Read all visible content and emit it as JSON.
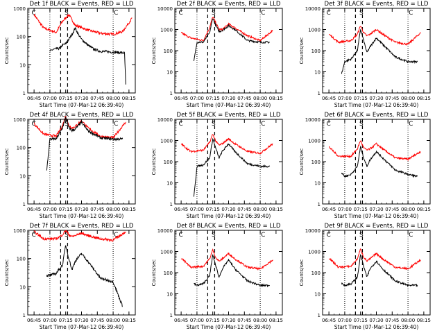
{
  "colors": {
    "events": "#000000",
    "lld": "#ff0000",
    "axes": "#000000"
  },
  "chart_data": [
    {
      "type": "line",
      "title": "Det 1f BLACK = Events, RED = LLD",
      "xlabel": "Start Time (07-Mar-12 06:39:40)",
      "ylabel": "Counts/sec",
      "xticks": [
        "06:45",
        "07:00",
        "07:15",
        "07:30",
        "07:45",
        "08:00",
        "08:15"
      ],
      "yticks": [
        "1",
        "10",
        "100",
        "1000"
      ],
      "ylim": [
        1,
        1000
      ],
      "markers": [
        "C",
        "S",
        "C"
      ],
      "series": [
        {
          "name": "LLD",
          "color": "#ff0000",
          "x": [
            6.75,
            6.9,
            7.1,
            7.2,
            7.3,
            7.4,
            7.6,
            7.8,
            8.0,
            8.15,
            8.3
          ],
          "y": [
            600,
            200,
            140,
            350,
            600,
            250,
            170,
            130,
            120,
            150,
            450
          ]
        },
        {
          "name": "Events",
          "color": "#000000",
          "x": [
            7.0,
            7.05,
            7.15,
            7.2,
            7.25,
            7.3,
            7.35,
            7.4,
            7.45,
            7.5,
            7.6,
            7.7,
            7.8,
            8.0,
            8.12,
            8.18,
            8.2
          ],
          "y": [
            30,
            35,
            38,
            50,
            55,
            80,
            120,
            200,
            120,
            80,
            50,
            35,
            30,
            28,
            27,
            26,
            2
          ]
        }
      ]
    },
    {
      "type": "line",
      "title": "Det 2f BLACK = Events, RED = LLD",
      "xlabel": "Start Time (07-Mar-12 06:39:40)",
      "ylabel": "Counts/sec",
      "xticks": [
        "06:45",
        "07:00",
        "07:15",
        "07:30",
        "07:45",
        "08:00",
        "08:15"
      ],
      "yticks": [
        "1",
        "10",
        "100",
        "1000",
        "10000"
      ],
      "ylim": [
        1,
        10000
      ],
      "markers": [
        "C",
        "S",
        "C"
      ],
      "series": [
        {
          "name": "LLD",
          "color": "#ff0000",
          "x": [
            6.75,
            6.9,
            7.1,
            7.2,
            7.25,
            7.3,
            7.35,
            7.4,
            7.5,
            7.6,
            7.8,
            8.0,
            8.2
          ],
          "y": [
            700,
            400,
            300,
            1200,
            4000,
            2000,
            1000,
            1000,
            1800,
            1200,
            500,
            300,
            900
          ]
        },
        {
          "name": "Events",
          "color": "#000000",
          "x": [
            6.95,
            7.0,
            7.1,
            7.2,
            7.25,
            7.3,
            7.35,
            7.4,
            7.5,
            7.6,
            7.8,
            8.0,
            8.15
          ],
          "y": [
            30,
            250,
            250,
            700,
            3500,
            1500,
            800,
            900,
            1500,
            1000,
            300,
            250,
            250
          ]
        }
      ]
    },
    {
      "type": "line",
      "title": "Det 3f BLACK = Events, RED = LLD",
      "xlabel": "Start Time (07-Mar-12 06:39:40)",
      "ylabel": "Counts/sec",
      "xticks": [
        "06:45",
        "07:00",
        "07:15",
        "07:30",
        "07:45",
        "08:00",
        "08:15"
      ],
      "yticks": [
        "1",
        "10",
        "100",
        "1000",
        "10000"
      ],
      "ylim": [
        1,
        10000
      ],
      "markers": [
        "C",
        "S",
        "C"
      ],
      "series": [
        {
          "name": "LLD",
          "color": "#ff0000",
          "x": [
            6.75,
            6.9,
            7.1,
            7.2,
            7.25,
            7.3,
            7.35,
            7.4,
            7.5,
            7.6,
            7.8,
            8.0,
            8.2
          ],
          "y": [
            600,
            250,
            300,
            600,
            1500,
            700,
            500,
            600,
            1000,
            600,
            250,
            200,
            700
          ]
        },
        {
          "name": "Events",
          "color": "#000000",
          "x": [
            6.95,
            7.0,
            7.1,
            7.2,
            7.25,
            7.3,
            7.35,
            7.4,
            7.5,
            7.6,
            7.8,
            8.0,
            8.15
          ],
          "y": [
            8,
            30,
            40,
            100,
            1000,
            300,
            80,
            150,
            400,
            200,
            50,
            30,
            30
          ]
        }
      ]
    },
    {
      "type": "line",
      "title": "Det 4f BLACK = Events, RED = LLD",
      "xlabel": "Start Time (07-Mar-12 06:39:40)",
      "ylabel": "Counts/sec",
      "xticks": [
        "06:45",
        "07:00",
        "07:15",
        "07:30",
        "07:45",
        "08:00",
        "08:15"
      ],
      "yticks": [
        "1",
        "10",
        "100",
        "1000"
      ],
      "ylim": [
        1,
        1000
      ],
      "markers": [
        "C",
        "S",
        "C"
      ],
      "series": [
        {
          "name": "LLD",
          "color": "#ff0000",
          "x": [
            6.75,
            6.9,
            7.1,
            7.2,
            7.25,
            7.3,
            7.35,
            7.4,
            7.5,
            7.6,
            7.8,
            8.0,
            8.2
          ],
          "y": [
            700,
            300,
            250,
            600,
            1300,
            600,
            500,
            550,
            900,
            500,
            250,
            220,
            800
          ]
        },
        {
          "name": "Events",
          "color": "#000000",
          "x": [
            6.95,
            7.0,
            7.1,
            7.2,
            7.25,
            7.3,
            7.35,
            7.4,
            7.5,
            7.6,
            7.8,
            8.0,
            8.15
          ],
          "y": [
            15,
            200,
            200,
            500,
            1200,
            500,
            400,
            450,
            800,
            400,
            220,
            200,
            200
          ]
        }
      ]
    },
    {
      "type": "line",
      "title": "Det 5f BLACK = Events, RED = LLD",
      "xlabel": "Start Time (07-Mar-12 06:39:40)",
      "ylabel": "Counts/sec",
      "xticks": [
        "06:45",
        "07:00",
        "07:15",
        "07:30",
        "07:45",
        "08:00",
        "08:15"
      ],
      "yticks": [
        "1",
        "10",
        "100",
        "1000",
        "10000"
      ],
      "ylim": [
        1,
        10000
      ],
      "markers": [
        "C",
        "S",
        "C"
      ],
      "series": [
        {
          "name": "LLD",
          "color": "#ff0000",
          "x": [
            6.75,
            6.9,
            7.1,
            7.2,
            7.25,
            7.3,
            7.35,
            7.4,
            7.5,
            7.6,
            7.8,
            8.0,
            8.2
          ],
          "y": [
            700,
            300,
            350,
            800,
            2000,
            900,
            600,
            700,
            1200,
            700,
            300,
            250,
            700
          ]
        },
        {
          "name": "Events",
          "color": "#000000",
          "x": [
            6.95,
            7.0,
            7.1,
            7.2,
            7.25,
            7.3,
            7.35,
            7.4,
            7.5,
            7.6,
            7.8,
            8.0,
            8.15
          ],
          "y": [
            2,
            60,
            70,
            150,
            1200,
            400,
            150,
            300,
            700,
            300,
            80,
            60,
            60
          ]
        }
      ]
    },
    {
      "type": "line",
      "title": "Det 6f BLACK = Events, RED = LLD",
      "xlabel": "Start Time (07-Mar-12 06:39:40)",
      "ylabel": "Counts/sec",
      "xticks": [
        "06:45",
        "07:00",
        "07:15",
        "07:30",
        "07:45",
        "08:00",
        "08:15"
      ],
      "yticks": [
        "1",
        "10",
        "100",
        "1000",
        "10000"
      ],
      "ylim": [
        1,
        10000
      ],
      "markers": [
        "C",
        "S",
        "C"
      ],
      "series": [
        {
          "name": "LLD",
          "color": "#ff0000",
          "x": [
            6.75,
            6.9,
            7.1,
            7.2,
            7.25,
            7.3,
            7.35,
            7.4,
            7.5,
            7.6,
            7.8,
            8.0,
            8.2
          ],
          "y": [
            500,
            180,
            180,
            400,
            1000,
            450,
            350,
            400,
            700,
            400,
            150,
            130,
            300
          ]
        },
        {
          "name": "Events",
          "color": "#000000",
          "x": [
            6.95,
            7.0,
            7.1,
            7.2,
            7.25,
            7.3,
            7.35,
            7.4,
            7.5,
            7.6,
            7.8,
            8.0,
            8.15
          ],
          "y": [
            30,
            20,
            25,
            60,
            500,
            150,
            60,
            120,
            300,
            150,
            40,
            25,
            20
          ]
        }
      ]
    },
    {
      "type": "line",
      "title": "Det 7f BLACK = Events, RED = LLD",
      "xlabel": "Start Time (07-Mar-12 06:39:40)",
      "ylabel": "Counts/sec",
      "xticks": [
        "06:45",
        "07:00",
        "07:15",
        "07:30",
        "07:45",
        "08:00",
        "08:15"
      ],
      "yticks": [
        "1",
        "10",
        "100",
        "1000"
      ],
      "ylim": [
        1,
        1000
      ],
      "markers": [
        "C",
        "S",
        "C"
      ],
      "series": [
        {
          "name": "LLD",
          "color": "#ff0000",
          "x": [
            6.75,
            6.9,
            7.1,
            7.2,
            7.25,
            7.3,
            7.35,
            7.4,
            7.5,
            7.6,
            7.8,
            8.0,
            8.2
          ],
          "y": [
            900,
            500,
            500,
            700,
            1000,
            700,
            600,
            650,
            800,
            650,
            500,
            450,
            900
          ]
        },
        {
          "name": "Events",
          "color": "#000000",
          "x": [
            6.95,
            7.0,
            7.1,
            7.2,
            7.25,
            7.3,
            7.35,
            7.4,
            7.5,
            7.6,
            7.8,
            8.0,
            8.15
          ],
          "y": [
            25,
            25,
            30,
            60,
            300,
            100,
            40,
            80,
            150,
            80,
            20,
            15,
            2
          ]
        }
      ]
    },
    {
      "type": "line",
      "title": "Det 8f BLACK = Events, RED = LLD",
      "xlabel": "Start Time (07-Mar-12 06:39:40)",
      "ylabel": "Counts/sec",
      "xticks": [
        "06:45",
        "07:00",
        "07:15",
        "07:30",
        "07:45",
        "08:00",
        "08:15"
      ],
      "yticks": [
        "1",
        "10",
        "100",
        "1000",
        "10000"
      ],
      "ylim": [
        1,
        10000
      ],
      "markers": [
        "C",
        "S",
        "C"
      ],
      "series": [
        {
          "name": "LLD",
          "color": "#ff0000",
          "x": [
            6.75,
            6.9,
            7.1,
            7.2,
            7.25,
            7.3,
            7.35,
            7.4,
            7.5,
            7.6,
            7.8,
            8.0,
            8.2
          ],
          "y": [
            500,
            180,
            200,
            450,
            1200,
            500,
            350,
            450,
            800,
            450,
            180,
            150,
            400
          ]
        },
        {
          "name": "Events",
          "color": "#000000",
          "x": [
            6.95,
            7.0,
            7.1,
            7.2,
            7.25,
            7.3,
            7.35,
            7.4,
            7.5,
            7.6,
            7.8,
            8.0,
            8.15
          ],
          "y": [
            30,
            25,
            30,
            70,
            700,
            200,
            60,
            150,
            400,
            150,
            40,
            25,
            25
          ]
        }
      ]
    },
    {
      "type": "line",
      "title": "Det 9f BLACK = Events, RED = LLD",
      "xlabel": "Start Time (07-Mar-12 06:39:40)",
      "ylabel": "Counts/sec",
      "xticks": [
        "06:45",
        "07:00",
        "07:15",
        "07:30",
        "07:45",
        "08:00",
        "08:15"
      ],
      "yticks": [
        "1",
        "10",
        "100",
        "1000",
        "10000"
      ],
      "ylim": [
        1,
        10000
      ],
      "markers": [
        "C",
        "S",
        "C"
      ],
      "series": [
        {
          "name": "LLD",
          "color": "#ff0000",
          "x": [
            6.75,
            6.9,
            7.1,
            7.2,
            7.25,
            7.3,
            7.35,
            7.4,
            7.5,
            7.6,
            7.8,
            8.0,
            8.2
          ],
          "y": [
            500,
            180,
            200,
            450,
            1300,
            550,
            350,
            450,
            800,
            450,
            180,
            150,
            400
          ]
        },
        {
          "name": "Events",
          "color": "#000000",
          "x": [
            6.95,
            7.0,
            7.1,
            7.2,
            7.25,
            7.3,
            7.35,
            7.4,
            7.5,
            7.6,
            7.8,
            8.0,
            8.15
          ],
          "y": [
            30,
            25,
            30,
            60,
            700,
            200,
            60,
            150,
            350,
            150,
            40,
            25,
            25
          ]
        }
      ]
    }
  ]
}
